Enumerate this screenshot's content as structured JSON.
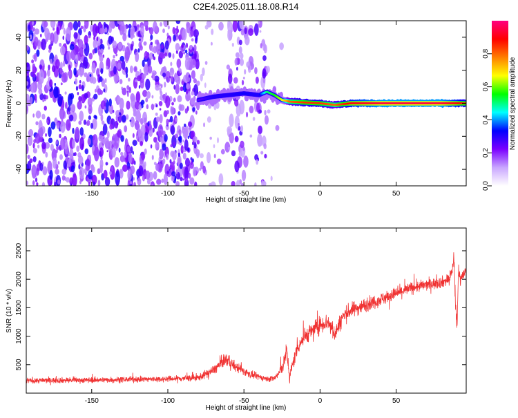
{
  "title": "C2E4.2025.011.18.08.R14",
  "chart_data": [
    {
      "type": "heatmap",
      "xlabel": "Height of straight line (km)",
      "ylabel": "Frequency (Hz)",
      "xlim": [
        -193,
        96
      ],
      "ylim": [
        -50,
        50
      ],
      "xticks": [
        -150,
        -100,
        -50,
        0,
        50
      ],
      "yticks": [
        -40,
        -20,
        0,
        20,
        40
      ],
      "grid": false,
      "colorbar": {
        "label": "Normalized spectral amplitude",
        "range": [
          0,
          1
        ],
        "ticks": [
          "0.0",
          "0.2",
          "0.4",
          "0.6",
          "0.8"
        ],
        "colormap": [
          "#ffffff",
          "#c9a6ff",
          "#7a00ff",
          "#0000ff",
          "#00ffff",
          "#00ff00",
          "#ffff00",
          "#ff7f00",
          "#ff0000",
          "#ff0080"
        ]
      },
      "ridge": {
        "description_points_x": [
          -80,
          -70,
          -60,
          -50,
          -40,
          -35,
          -30,
          -25,
          -20,
          -10,
          0,
          10,
          20,
          40,
          60,
          80,
          90,
          96
        ],
        "frequency": [
          2,
          4,
          5,
          6,
          5,
          7,
          5,
          2,
          1,
          0.5,
          0,
          -1,
          0,
          0,
          0,
          0,
          0,
          0
        ],
        "amplitude": [
          0.25,
          0.3,
          0.3,
          0.32,
          0.3,
          0.5,
          0.55,
          0.65,
          0.8,
          0.85,
          0.85,
          0.8,
          0.9,
          0.95,
          0.95,
          0.95,
          0.9,
          0.85
        ]
      },
      "noise_regions": [
        {
          "x_from": -193,
          "x_to": -80,
          "density": "high",
          "amplitude": [
            0.05,
            0.25
          ]
        },
        {
          "x_from": -80,
          "x_to": -60,
          "density": "low",
          "amplitude": [
            0.02,
            0.12
          ]
        },
        {
          "x_from": -60,
          "x_to": -35,
          "density": "medium",
          "amplitude": [
            0.03,
            0.2
          ]
        },
        {
          "x_from": -35,
          "x_to": -25,
          "density": "very low",
          "amplitude": [
            0.02,
            0.06
          ]
        }
      ]
    },
    {
      "type": "line",
      "xlabel": "Height of straight line (km)",
      "ylabel": "SNR (10 * v/v)",
      "xlim": [
        -193,
        96
      ],
      "ylim": [
        0,
        2900
      ],
      "xticks": [
        -150,
        -100,
        -50,
        0,
        50
      ],
      "yticks": [
        500,
        1000,
        1500,
        2000,
        2500
      ],
      "grid": false,
      "color": "#f03232",
      "series": [
        {
          "x": [
            -193,
            -150,
            -100,
            -80,
            -70,
            -62,
            -55,
            -45,
            -35,
            -30,
            -27,
            -24,
            -22,
            -20,
            -15,
            -10,
            -5,
            0,
            5,
            10,
            15,
            20,
            30,
            40,
            50,
            60,
            70,
            80,
            85,
            88,
            89,
            90,
            91,
            92,
            94,
            96
          ],
          "y": [
            220,
            230,
            250,
            270,
            400,
            600,
            450,
            320,
            250,
            260,
            350,
            500,
            750,
            300,
            800,
            1000,
            1100,
            1200,
            1250,
            1050,
            1350,
            1450,
            1550,
            1650,
            1750,
            1850,
            1900,
            1950,
            2000,
            2300,
            1500,
            1200,
            2200,
            2000,
            2100,
            2150
          ],
          "noise": [
            90,
            90,
            90,
            110,
            150,
            200,
            160,
            110,
            90,
            100,
            150,
            220,
            260,
            200,
            250,
            260,
            260,
            270,
            280,
            280,
            250,
            240,
            220,
            210,
            200,
            190,
            180,
            180,
            200,
            250,
            300,
            300,
            250,
            180,
            150,
            150
          ]
        }
      ]
    }
  ]
}
